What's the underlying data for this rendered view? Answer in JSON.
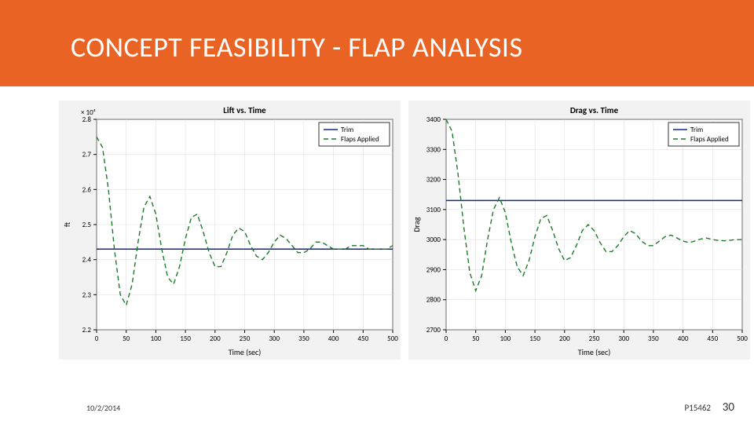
{
  "slide": {
    "title": "CONCEPT FEASIBILITY  - FLAP ANALYSIS",
    "band_color": "#e96424",
    "title_color": "#ffffff"
  },
  "footer": {
    "date": "10/2/2014",
    "project": "P15462",
    "page": "30"
  },
  "chart_common": {
    "plot_bg": "#ffffff",
    "outer_bg": "#f2f2f2",
    "grid_color": "#d9d9d9",
    "axis_color": "#000000",
    "trim_color": "#0f2a8a",
    "flaps_color": "#1d7a2a",
    "flaps_dash": "6 4",
    "label_fontsize": 10,
    "tick_fontsize": 9,
    "title_fontsize": 11,
    "legend_box_stroke": "#000000",
    "legend_bg": "#ffffff",
    "legend_fontsize": 9
  },
  "left_chart": {
    "title": "Lift vs. Time",
    "xlabel": "Time (sec)",
    "ylabel": "ft",
    "ylabel_exp": "× 10⁴",
    "xlim": [
      0,
      500
    ],
    "ylim": [
      2.2,
      2.8
    ],
    "xticks": [
      0,
      50,
      100,
      150,
      200,
      250,
      300,
      350,
      400,
      450,
      500
    ],
    "yticks": [
      2.2,
      2.3,
      2.4,
      2.5,
      2.6,
      2.7,
      2.8
    ],
    "trim_y": 2.43,
    "legend": [
      "Trim",
      "Flaps Applied"
    ],
    "flaps_series": [
      [
        0,
        2.75
      ],
      [
        10,
        2.72
      ],
      [
        20,
        2.6
      ],
      [
        30,
        2.43
      ],
      [
        40,
        2.3
      ],
      [
        50,
        2.27
      ],
      [
        60,
        2.33
      ],
      [
        70,
        2.45
      ],
      [
        80,
        2.55
      ],
      [
        90,
        2.58
      ],
      [
        100,
        2.53
      ],
      [
        110,
        2.43
      ],
      [
        120,
        2.35
      ],
      [
        130,
        2.33
      ],
      [
        140,
        2.38
      ],
      [
        150,
        2.46
      ],
      [
        160,
        2.52
      ],
      [
        170,
        2.53
      ],
      [
        180,
        2.48
      ],
      [
        190,
        2.42
      ],
      [
        200,
        2.38
      ],
      [
        210,
        2.38
      ],
      [
        220,
        2.42
      ],
      [
        230,
        2.47
      ],
      [
        240,
        2.49
      ],
      [
        250,
        2.48
      ],
      [
        260,
        2.44
      ],
      [
        270,
        2.41
      ],
      [
        280,
        2.4
      ],
      [
        290,
        2.42
      ],
      [
        300,
        2.45
      ],
      [
        310,
        2.47
      ],
      [
        320,
        2.46
      ],
      [
        330,
        2.44
      ],
      [
        340,
        2.42
      ],
      [
        350,
        2.42
      ],
      [
        360,
        2.43
      ],
      [
        370,
        2.45
      ],
      [
        380,
        2.45
      ],
      [
        390,
        2.44
      ],
      [
        400,
        2.43
      ],
      [
        410,
        2.43
      ],
      [
        420,
        2.43
      ],
      [
        430,
        2.44
      ],
      [
        440,
        2.44
      ],
      [
        450,
        2.44
      ],
      [
        460,
        2.43
      ],
      [
        470,
        2.43
      ],
      [
        480,
        2.43
      ],
      [
        490,
        2.43
      ],
      [
        500,
        2.44
      ]
    ]
  },
  "right_chart": {
    "title": "Drag vs. Time",
    "xlabel": "Time (sec)",
    "ylabel": "Drag",
    "xlim": [
      0,
      500
    ],
    "ylim": [
      2700,
      3400
    ],
    "xticks": [
      0,
      50,
      100,
      150,
      200,
      250,
      300,
      350,
      400,
      450,
      500
    ],
    "yticks": [
      2700,
      2800,
      2900,
      3000,
      3100,
      3200,
      3300,
      3400
    ],
    "trim_y": 3130,
    "legend": [
      "Trim",
      "Flaps Applied"
    ],
    "flaps_series": [
      [
        0,
        3400
      ],
      [
        10,
        3360
      ],
      [
        20,
        3220
      ],
      [
        30,
        3040
      ],
      [
        40,
        2890
      ],
      [
        50,
        2830
      ],
      [
        60,
        2880
      ],
      [
        70,
        3000
      ],
      [
        80,
        3100
      ],
      [
        90,
        3140
      ],
      [
        100,
        3090
      ],
      [
        110,
        2990
      ],
      [
        120,
        2910
      ],
      [
        130,
        2880
      ],
      [
        140,
        2930
      ],
      [
        150,
        3010
      ],
      [
        160,
        3070
      ],
      [
        170,
        3080
      ],
      [
        180,
        3030
      ],
      [
        190,
        2970
      ],
      [
        200,
        2930
      ],
      [
        210,
        2940
      ],
      [
        220,
        2980
      ],
      [
        230,
        3030
      ],
      [
        240,
        3050
      ],
      [
        250,
        3030
      ],
      [
        260,
        2990
      ],
      [
        270,
        2960
      ],
      [
        280,
        2960
      ],
      [
        290,
        2980
      ],
      [
        300,
        3010
      ],
      [
        310,
        3030
      ],
      [
        320,
        3020
      ],
      [
        330,
        2995
      ],
      [
        340,
        2980
      ],
      [
        350,
        2980
      ],
      [
        360,
        2995
      ],
      [
        370,
        3010
      ],
      [
        380,
        3015
      ],
      [
        390,
        3005
      ],
      [
        400,
        2995
      ],
      [
        410,
        2990
      ],
      [
        420,
        2995
      ],
      [
        430,
        3002
      ],
      [
        440,
        3005
      ],
      [
        450,
        3000
      ],
      [
        460,
        2997
      ],
      [
        470,
        2996
      ],
      [
        480,
        2998
      ],
      [
        490,
        3000
      ],
      [
        500,
        3000
      ]
    ]
  }
}
